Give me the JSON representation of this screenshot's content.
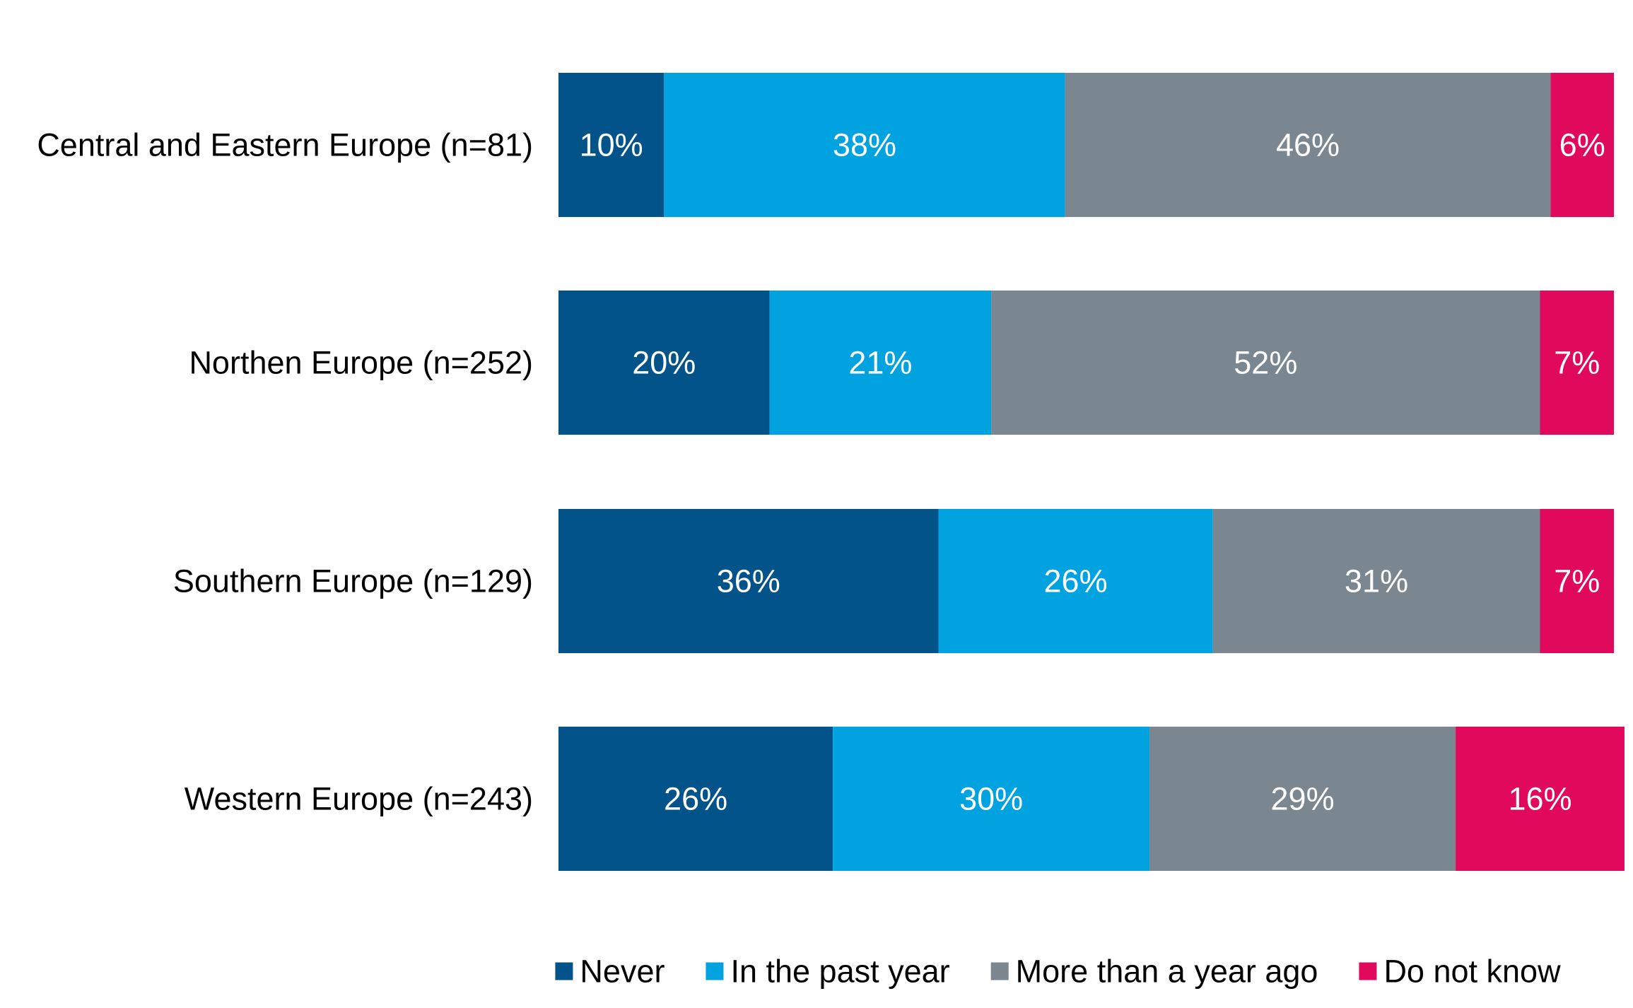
{
  "chart_data": {
    "type": "bar",
    "orientation": "horizontal",
    "stacked": true,
    "categories": [
      "Central and Eastern Europe (n=81)",
      "Northen Europe (n=252)",
      "Southern Europe (n=129)",
      "Western Europe (n=243)"
    ],
    "series": [
      {
        "name": "Never",
        "color": "#02538A",
        "values": [
          10,
          20,
          36,
          26
        ],
        "labels": [
          "10%",
          "20%",
          "36%",
          "26%"
        ]
      },
      {
        "name": "In the past year",
        "color": "#00A3E0",
        "values": [
          38,
          21,
          26,
          30
        ],
        "labels": [
          "38%",
          "21%",
          "26%",
          "30%"
        ]
      },
      {
        "name": "More than a year ago",
        "color": "#7A8690",
        "values": [
          46,
          52,
          31,
          29
        ],
        "labels": [
          "46%",
          "52%",
          "31%",
          "29%"
        ]
      },
      {
        "name": "Do not know",
        "color": "#E0095C",
        "values": [
          6,
          7,
          7,
          16
        ],
        "labels": [
          "6%",
          "7%",
          "7%",
          "16%"
        ]
      }
    ],
    "title": "",
    "xlabel": "",
    "ylabel": "",
    "xlim": [
      0,
      100
    ],
    "grid": false,
    "legend_position": "bottom"
  }
}
